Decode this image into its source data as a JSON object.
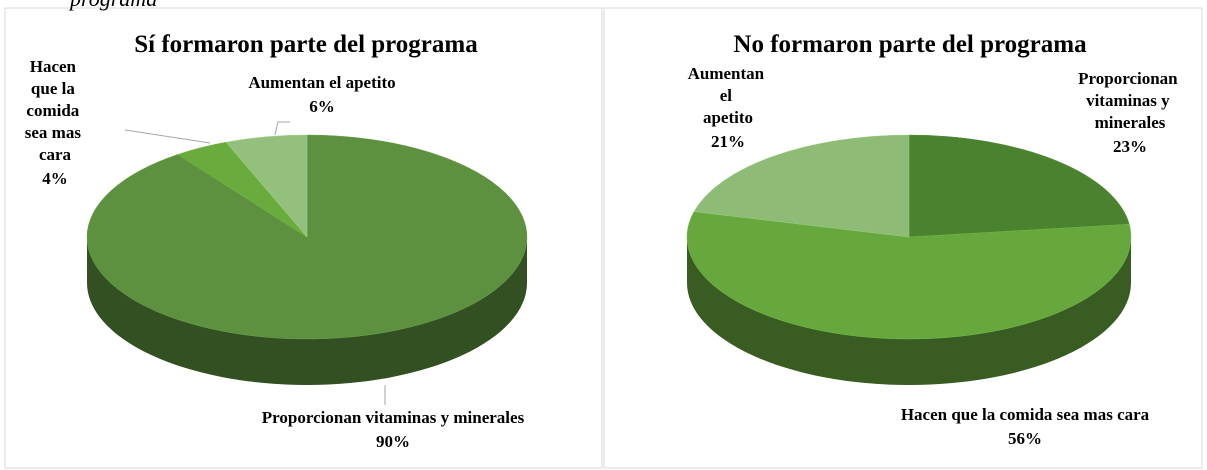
{
  "caption": "programa",
  "chart_data": [
    {
      "type": "pie",
      "title": "Sí formaron parte del programa",
      "categories": [
        "Proporcionan vitaminas y minerales",
        "Hacen que la comida sea mas cara",
        "Aumentan el apetito"
      ],
      "values": [
        90,
        4,
        6
      ],
      "value_labels": [
        "90%",
        "4%",
        "6%"
      ],
      "colors": [
        "#5d9140",
        "#6aab3e",
        "#93c07c"
      ]
    },
    {
      "type": "pie",
      "title": "No formaron parte del programa",
      "categories": [
        "Proporcionan vitaminas y minerales",
        "Hacen que la comida sea mas cara",
        "Aumentan el apetito"
      ],
      "values": [
        23,
        56,
        21
      ],
      "value_labels": [
        "23%",
        "56%",
        "21%"
      ],
      "colors": [
        "#4b822f",
        "#67a83e",
        "#8ebb76"
      ]
    }
  ]
}
